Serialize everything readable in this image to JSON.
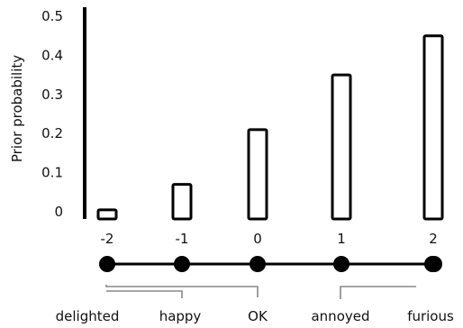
{
  "chart_data": {
    "type": "bar",
    "ylabel": "Prior probability",
    "ylim": [
      0,
      0.5
    ],
    "yticks": [
      "0",
      "0.1",
      "0.2",
      "0.3",
      "0.4",
      "0.5"
    ],
    "categories": [
      "-2",
      "-1",
      "0",
      "1",
      "2"
    ],
    "values": [
      0.005,
      0.07,
      0.21,
      0.35,
      0.45
    ],
    "point_labels": [
      "delighted",
      "happy",
      "OK",
      "annoyed",
      "furious"
    ]
  }
}
